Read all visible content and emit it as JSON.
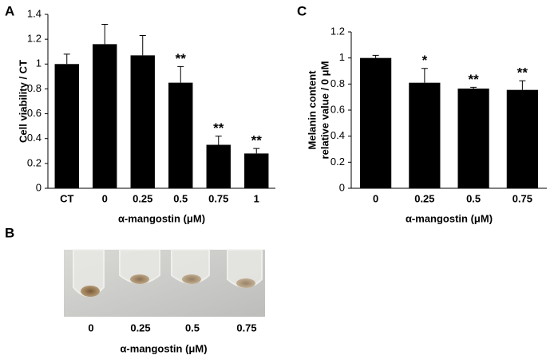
{
  "chart_data": [
    {
      "type": "bar",
      "panel": "A",
      "ylabel": [
        "Cell viability / CT"
      ],
      "xlabel": "α-mangostin (μM)",
      "categories": [
        "CT",
        "0",
        "0.25",
        "0.5",
        "0.75",
        "1"
      ],
      "values": [
        1.0,
        1.16,
        1.07,
        0.85,
        0.35,
        0.28
      ],
      "errors": [
        0.08,
        0.16,
        0.16,
        0.13,
        0.07,
        0.04
      ],
      "annotations": [
        null,
        null,
        null,
        "**",
        "**",
        "**"
      ],
      "color": "#000000",
      "ylim": [
        0,
        1.4
      ],
      "yticks": [
        0,
        0.2,
        0.4,
        0.6,
        0.8,
        1,
        1.2,
        1.4
      ]
    },
    {
      "type": "bar",
      "panel": "C",
      "ylabel": [
        "Melanin content",
        "relative value / 0 μM"
      ],
      "xlabel": "α-mangostin (μM)",
      "categories": [
        "0",
        "0.25",
        "0.5",
        "0.75"
      ],
      "values": [
        1.0,
        0.81,
        0.765,
        0.755
      ],
      "errors": [
        0.02,
        0.11,
        0.01,
        0.07
      ],
      "annotations": [
        null,
        "*",
        "**",
        "**"
      ],
      "color": "#000000",
      "ylim": [
        0,
        1.2
      ],
      "yticks": [
        0,
        0.2,
        0.4,
        0.6,
        0.8,
        1,
        1.2
      ]
    }
  ],
  "panel_b": {
    "panel": "B",
    "categories": [
      "0",
      "0.25",
      "0.5",
      "0.75"
    ],
    "xlabel": "α-mangostin (μM)"
  }
}
